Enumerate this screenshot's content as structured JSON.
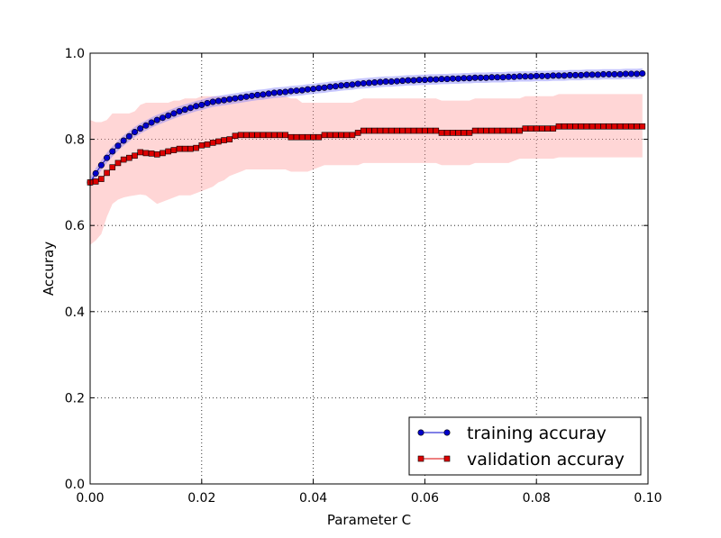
{
  "chart_data": {
    "type": "line",
    "xlabel": "Parameter C",
    "ylabel": "Accuray",
    "xlim": [
      0.0,
      0.1
    ],
    "ylim": [
      0.0,
      1.0
    ],
    "x_ticks": [
      "0.00",
      "0.02",
      "0.04",
      "0.06",
      "0.08",
      "0.10"
    ],
    "y_ticks": [
      "0.0",
      "0.2",
      "0.4",
      "0.6",
      "0.8",
      "1.0"
    ],
    "grid": true,
    "legend_position": "lower-right",
    "x_start": 0.0,
    "x_step": 0.001,
    "n_points": 100,
    "series": [
      {
        "name": "training accuray",
        "color": "#0000cc",
        "band_color": "#8080ff",
        "marker": "circle",
        "values": [
          0.7,
          0.721,
          0.74,
          0.757,
          0.772,
          0.785,
          0.797,
          0.807,
          0.817,
          0.825,
          0.832,
          0.839,
          0.845,
          0.85,
          0.855,
          0.86,
          0.865,
          0.869,
          0.873,
          0.877,
          0.88,
          0.884,
          0.887,
          0.889,
          0.891,
          0.893,
          0.895,
          0.897,
          0.899,
          0.901,
          0.903,
          0.904,
          0.906,
          0.908,
          0.909,
          0.91,
          0.912,
          0.913,
          0.914,
          0.916,
          0.917,
          0.919,
          0.92,
          0.922,
          0.923,
          0.925,
          0.926,
          0.927,
          0.929,
          0.93,
          0.931,
          0.932,
          0.933,
          0.934,
          0.934,
          0.935,
          0.936,
          0.937,
          0.937,
          0.938,
          0.938,
          0.939,
          0.939,
          0.94,
          0.94,
          0.941,
          0.941,
          0.942,
          0.942,
          0.943,
          0.943,
          0.943,
          0.944,
          0.944,
          0.944,
          0.945,
          0.945,
          0.946,
          0.946,
          0.946,
          0.947,
          0.947,
          0.947,
          0.948,
          0.948,
          0.948,
          0.949,
          0.949,
          0.949,
          0.95,
          0.95,
          0.95,
          0.951,
          0.951,
          0.951,
          0.951,
          0.952,
          0.952,
          0.952,
          0.953
        ],
        "std": 0.012
      },
      {
        "name": "validation accuray",
        "color": "#dd0000",
        "band_color": "#ff9999",
        "marker": "square",
        "values": [
          0.7,
          0.702,
          0.708,
          0.722,
          0.735,
          0.745,
          0.753,
          0.757,
          0.762,
          0.77,
          0.768,
          0.767,
          0.765,
          0.768,
          0.772,
          0.775,
          0.778,
          0.778,
          0.778,
          0.78,
          0.786,
          0.788,
          0.792,
          0.795,
          0.798,
          0.8,
          0.808,
          0.81,
          0.81,
          0.81,
          0.81,
          0.81,
          0.81,
          0.81,
          0.81,
          0.81,
          0.805,
          0.805,
          0.805,
          0.805,
          0.805,
          0.805,
          0.81,
          0.81,
          0.81,
          0.81,
          0.81,
          0.81,
          0.815,
          0.82,
          0.82,
          0.82,
          0.82,
          0.82,
          0.82,
          0.82,
          0.82,
          0.82,
          0.82,
          0.82,
          0.82,
          0.82,
          0.82,
          0.815,
          0.815,
          0.815,
          0.815,
          0.815,
          0.815,
          0.82,
          0.82,
          0.82,
          0.82,
          0.82,
          0.82,
          0.82,
          0.82,
          0.82,
          0.825,
          0.825,
          0.825,
          0.825,
          0.825,
          0.825,
          0.83,
          0.83,
          0.83,
          0.83,
          0.83,
          0.83,
          0.83,
          0.83,
          0.83,
          0.83,
          0.83,
          0.83,
          0.83,
          0.83,
          0.83,
          0.83
        ],
        "lower": [
          0.555,
          0.565,
          0.58,
          0.62,
          0.65,
          0.66,
          0.665,
          0.668,
          0.67,
          0.672,
          0.67,
          0.66,
          0.65,
          0.655,
          0.66,
          0.665,
          0.67,
          0.67,
          0.67,
          0.675,
          0.68,
          0.685,
          0.69,
          0.7,
          0.705,
          0.715,
          0.72,
          0.725,
          0.73,
          0.73,
          0.73,
          0.73,
          0.73,
          0.73,
          0.73,
          0.73,
          0.725,
          0.725,
          0.725,
          0.725,
          0.73,
          0.735,
          0.74,
          0.74,
          0.74,
          0.74,
          0.74,
          0.74,
          0.74,
          0.745,
          0.745,
          0.745,
          0.745,
          0.745,
          0.745,
          0.745,
          0.745,
          0.745,
          0.745,
          0.745,
          0.745,
          0.745,
          0.745,
          0.74,
          0.74,
          0.74,
          0.74,
          0.74,
          0.74,
          0.745,
          0.745,
          0.745,
          0.745,
          0.745,
          0.745,
          0.745,
          0.75,
          0.755,
          0.755,
          0.755,
          0.755,
          0.755,
          0.755,
          0.755,
          0.758,
          0.758,
          0.758,
          0.758,
          0.758,
          0.758,
          0.758,
          0.758,
          0.758,
          0.758,
          0.758,
          0.758,
          0.758,
          0.758,
          0.758,
          0.758
        ],
        "upper": [
          0.845,
          0.84,
          0.84,
          0.845,
          0.86,
          0.86,
          0.86,
          0.86,
          0.865,
          0.88,
          0.885,
          0.885,
          0.885,
          0.885,
          0.885,
          0.89,
          0.89,
          0.895,
          0.895,
          0.895,
          0.9,
          0.9,
          0.9,
          0.9,
          0.9,
          0.9,
          0.9,
          0.9,
          0.9,
          0.9,
          0.9,
          0.9,
          0.9,
          0.9,
          0.9,
          0.9,
          0.895,
          0.895,
          0.885,
          0.885,
          0.885,
          0.885,
          0.885,
          0.885,
          0.885,
          0.885,
          0.885,
          0.885,
          0.89,
          0.895,
          0.895,
          0.895,
          0.895,
          0.895,
          0.895,
          0.895,
          0.895,
          0.895,
          0.895,
          0.895,
          0.895,
          0.895,
          0.895,
          0.89,
          0.89,
          0.89,
          0.89,
          0.89,
          0.89,
          0.895,
          0.895,
          0.895,
          0.895,
          0.895,
          0.895,
          0.895,
          0.895,
          0.895,
          0.9,
          0.9,
          0.9,
          0.9,
          0.9,
          0.9,
          0.905,
          0.905,
          0.905,
          0.905,
          0.905,
          0.905,
          0.905,
          0.905,
          0.905,
          0.905,
          0.905,
          0.905,
          0.905,
          0.905,
          0.905,
          0.905
        ]
      }
    ]
  }
}
